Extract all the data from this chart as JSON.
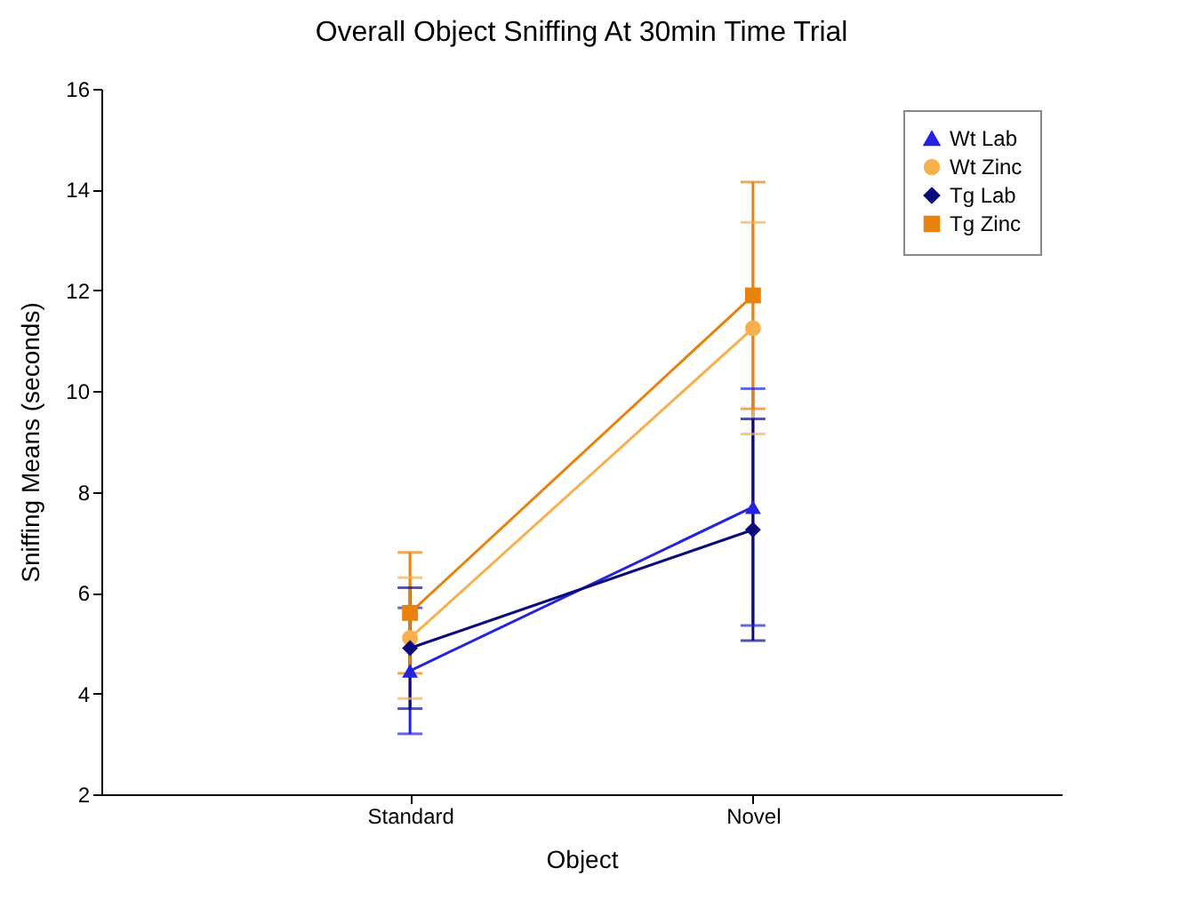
{
  "chart_data": {
    "type": "line",
    "title": "Overall Object Sniffing At 30min Time Trial",
    "xlabel": "Object",
    "ylabel": "Sniffing Means (seconds)",
    "categories": [
      "Standard",
      "Novel"
    ],
    "series": [
      {
        "name": "Wt Lab",
        "color": "#2323e0",
        "marker": "triangle",
        "values": [
          4.45,
          7.7
        ],
        "errors": [
          1.25,
          2.35
        ]
      },
      {
        "name": "Wt Zinc",
        "color": "#f7b04c",
        "marker": "circle",
        "values": [
          5.1,
          11.25
        ],
        "errors": [
          1.2,
          2.1
        ]
      },
      {
        "name": "Tg Lab",
        "color": "#0b0b7c",
        "marker": "diamond",
        "values": [
          4.9,
          7.25
        ],
        "errors": [
          1.2,
          2.2
        ]
      },
      {
        "name": "Tg Zinc",
        "color": "#e8820c",
        "marker": "square",
        "values": [
          5.6,
          11.9
        ],
        "errors": [
          1.2,
          2.25
        ]
      }
    ],
    "ylim": [
      2,
      16
    ],
    "yticks": [
      2,
      4,
      6,
      8,
      10,
      12,
      14,
      16
    ],
    "grid": false,
    "legend": "top right"
  }
}
